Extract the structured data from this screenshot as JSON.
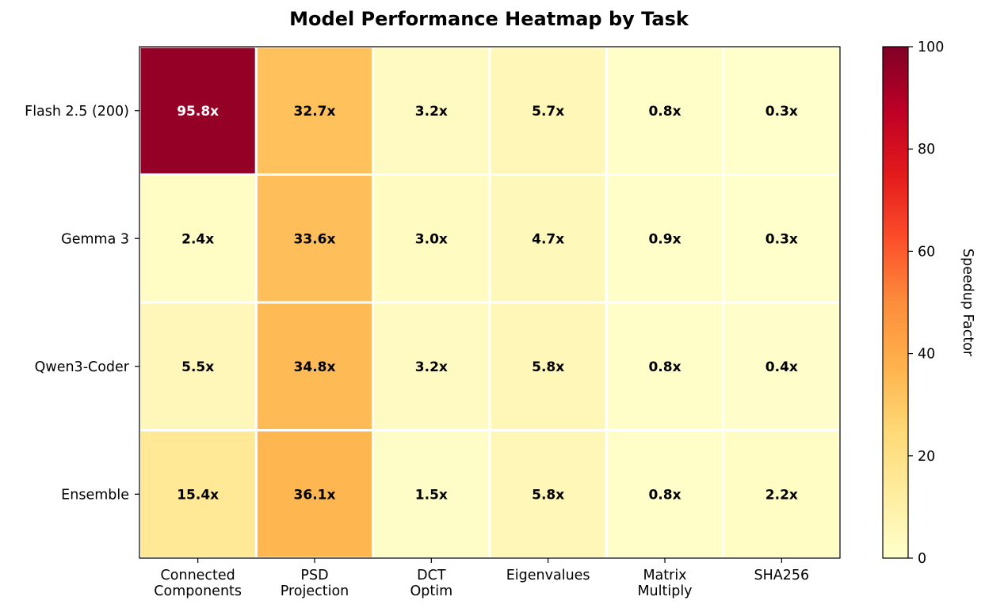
{
  "chart_data": {
    "type": "heatmap",
    "title": "Model Performance Heatmap by Task",
    "rows": [
      "Flash 2.5 (200)",
      "Gemma 3",
      "Qwen3-Coder",
      "Ensemble"
    ],
    "columns": [
      [
        "Connected",
        "Components"
      ],
      [
        "PSD",
        "Projection"
      ],
      [
        "DCT",
        "Optim"
      ],
      [
        "Eigenvalues"
      ],
      [
        "Matrix",
        "Multiply"
      ],
      [
        "SHA256"
      ]
    ],
    "values": [
      [
        95.8,
        32.7,
        3.2,
        5.7,
        0.8,
        0.3
      ],
      [
        2.4,
        33.6,
        3.0,
        4.7,
        0.9,
        0.3
      ],
      [
        5.5,
        34.8,
        3.2,
        5.8,
        0.8,
        0.4
      ],
      [
        15.4,
        36.1,
        1.5,
        5.8,
        0.8,
        2.2
      ]
    ],
    "cell_labels": [
      [
        "95.8x",
        "32.7x",
        "3.2x",
        "5.7x",
        "0.8x",
        "0.3x"
      ],
      [
        "2.4x",
        "33.6x",
        "3.0x",
        "4.7x",
        "0.9x",
        "0.3x"
      ],
      [
        "5.5x",
        "34.8x",
        "3.2x",
        "5.8x",
        "0.8x",
        "0.4x"
      ],
      [
        "15.4x",
        "36.1x",
        "1.5x",
        "5.8x",
        "0.8x",
        "2.2x"
      ]
    ],
    "colorbar": {
      "label": "Speedup Factor",
      "range": [
        0,
        100
      ],
      "ticks": [
        0,
        20,
        40,
        60,
        80,
        100
      ],
      "colormap": "YlOrRd"
    },
    "grid": false
  }
}
